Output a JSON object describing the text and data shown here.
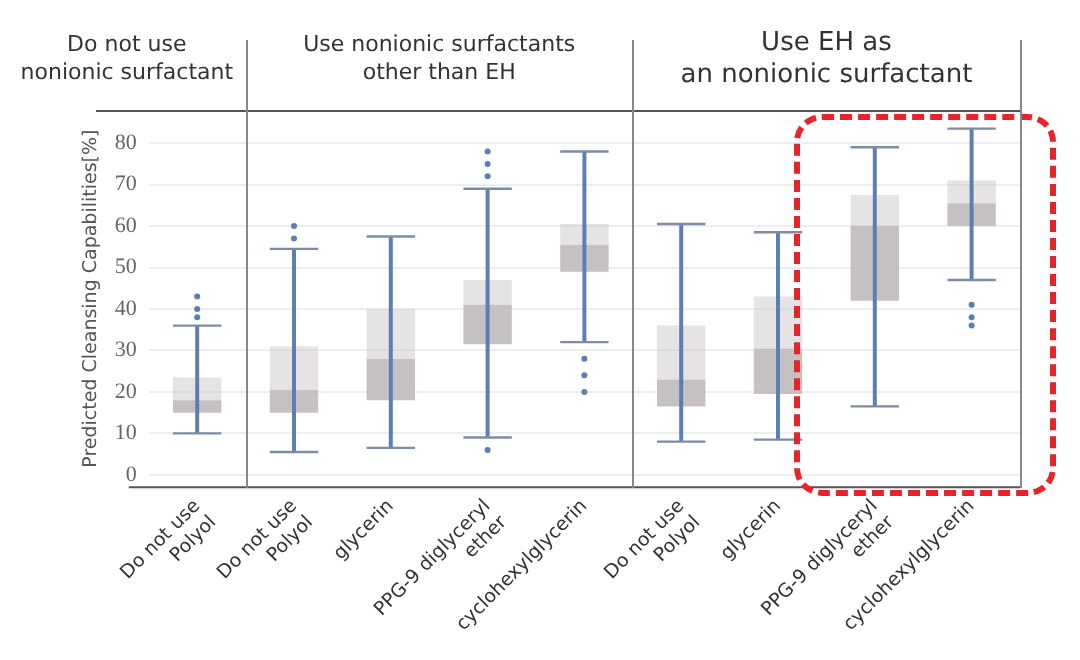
{
  "chart_data": {
    "type": "box",
    "ylabel": "Predicted Cleansing Capabilities[%]",
    "annotations": [
      "Do not use\nnonionic surfactant",
      "Use nonionic surfactants\nother than EH",
      "Use EH as\nan nonionic surfactant"
    ],
    "categories": [
      "Do not use Polyol",
      "Do not use Polyol",
      "glycerin",
      "PPG-9 diglyceryl ether",
      "cyclohexylglycerin",
      "Do not use Polyol",
      "glycerin",
      "PPG-9 diglyceryl ether",
      "cyclohexylglycerin"
    ],
    "boxes": [
      {
        "low": 10,
        "q1": 15,
        "median": 18,
        "q3": 23.5,
        "high": 36,
        "outliers": [
          38,
          40,
          43
        ]
      },
      {
        "low": 5.5,
        "q1": 15,
        "median": 20.5,
        "q3": 31,
        "high": 54.5,
        "outliers": [
          57,
          60
        ]
      },
      {
        "low": 6.5,
        "q1": 18,
        "median": 28,
        "q3": 40,
        "high": 57.5
      },
      {
        "low": 9,
        "q1": 31.5,
        "median": 41,
        "q3": 47,
        "high": 69,
        "outliers": [
          6,
          72,
          75,
          78
        ]
      },
      {
        "low": 32,
        "q1": 49,
        "median": 55.5,
        "q3": 60.5,
        "high": 78,
        "outliers": [
          20,
          24,
          28
        ]
      },
      {
        "low": 8,
        "q1": 16.5,
        "median": 23,
        "q3": 36,
        "high": 60.5
      },
      {
        "low": 8.5,
        "q1": 19.5,
        "median": 30.5,
        "q3": 43,
        "high": 58.5
      },
      {
        "low": 16.5,
        "q1": 42,
        "median": 60,
        "q3": 67.5,
        "high": 79
      },
      {
        "low": 47,
        "q1": 60,
        "median": 65.5,
        "q3": 71,
        "high": 83.5,
        "outliers": [
          36,
          38,
          41
        ]
      }
    ],
    "color": "#c5c1c3",
    "ylim": [
      -3,
      88
    ],
    "yticks": [
      0,
      10,
      20,
      30,
      40,
      50,
      60,
      70,
      80
    ],
    "grid": "y"
  }
}
